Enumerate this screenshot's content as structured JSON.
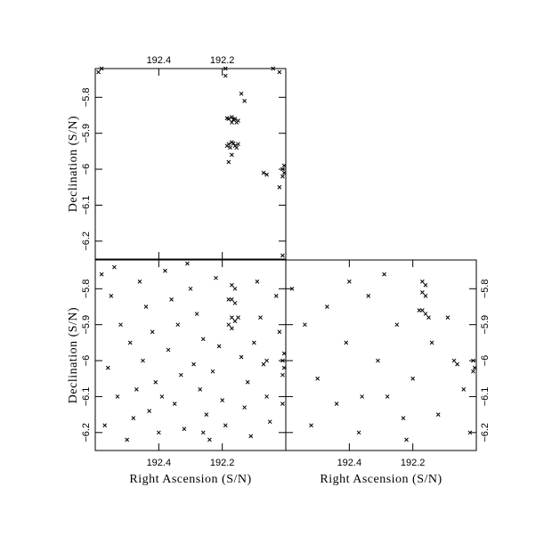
{
  "chart_data": [
    {
      "type": "scatter",
      "marker_color": "#000000",
      "xaxis_position": "top",
      "yaxis_position": "left",
      "ylabel": "Declination (S/N)",
      "xlim": [
        192.6,
        192.0
      ],
      "ylim": [
        -6.25,
        -5.72
      ],
      "xticks": [
        192.4,
        192.2
      ],
      "yticks": [
        {
          "value": -5.8,
          "label": "−5.8"
        },
        {
          "value": -5.9,
          "label": "−5.9"
        },
        {
          "value": -6,
          "label": "−6"
        },
        {
          "value": -6.1,
          "label": "−6.1"
        },
        {
          "value": -6.2,
          "label": "−6.2"
        }
      ],
      "x": [
        192.18,
        192.17,
        192.16,
        192.15,
        192.17,
        192.165,
        192.185,
        192.155,
        192.18,
        192.17,
        192.16,
        192.15,
        192.175,
        192.165,
        192.185,
        192.155,
        192.17,
        192.18,
        192.13,
        192.19,
        192.14,
        192.07,
        192.06,
        192.01,
        192.005,
        192.01,
        192.005,
        192.02,
        192.59,
        192.58,
        192.04,
        192.02,
        192.01,
        192.19
      ],
      "y": [
        -5.86,
        -5.855,
        -5.86,
        -5.865,
        -5.87,
        -5.862,
        -5.858,
        -5.87,
        -5.93,
        -5.925,
        -5.935,
        -5.93,
        -5.94,
        -5.928,
        -5.935,
        -5.94,
        -5.96,
        -5.98,
        -5.81,
        -5.74,
        -5.79,
        -6.01,
        -6.015,
        -6.0,
        -6.01,
        -6.02,
        -5.99,
        -6.05,
        -5.73,
        -5.72,
        -5.72,
        -5.73,
        -6.24,
        -5.72
      ]
    },
    {
      "type": "scatter",
      "marker_color": "#000000",
      "xaxis_position": "bottom",
      "yaxis_position": "left",
      "xlabel": "Right Ascension (S/N)",
      "ylabel": "Declination (S/N)",
      "xlim": [
        192.6,
        192.0
      ],
      "ylim": [
        -6.25,
        -5.72
      ],
      "xticks": [
        192.4,
        192.2
      ],
      "yticks": [
        {
          "value": -5.8,
          "label": "−5.8"
        },
        {
          "value": -5.9,
          "label": "−5.9"
        },
        {
          "value": -6,
          "label": "−6"
        },
        {
          "value": -6.1,
          "label": "−6.1"
        },
        {
          "value": -6.2,
          "label": "−6.2"
        }
      ],
      "x": [
        192.58,
        192.55,
        192.52,
        192.49,
        192.56,
        192.53,
        192.57,
        192.5,
        192.46,
        192.44,
        192.42,
        192.45,
        192.41,
        192.43,
        192.4,
        192.38,
        192.36,
        192.34,
        192.37,
        192.33,
        192.35,
        192.32,
        192.3,
        192.28,
        192.26,
        192.29,
        192.27,
        192.25,
        192.24,
        192.22,
        192.21,
        192.23,
        192.2,
        192.19,
        192.14,
        192.12,
        192.13,
        192.11,
        192.09,
        192.08,
        192.1,
        192.06,
        192.05,
        192.03,
        192.02,
        192.01,
        192.47,
        192.39,
        192.31,
        192.54,
        192.48,
        192.26,
        192.17,
        192.16,
        192.17,
        192.16,
        192.18,
        192.17,
        192.16,
        192.18,
        192.15,
        192.17,
        192.07,
        192.06,
        192.01,
        192.005,
        192.01,
        192.005
      ],
      "y": [
        -5.76,
        -5.82,
        -5.9,
        -5.95,
        -6.02,
        -6.1,
        -6.18,
        -6.22,
        -5.78,
        -5.85,
        -5.92,
        -6.0,
        -6.06,
        -6.14,
        -6.2,
        -5.75,
        -5.83,
        -5.9,
        -5.97,
        -6.04,
        -6.12,
        -6.19,
        -5.8,
        -5.87,
        -5.94,
        -6.01,
        -6.08,
        -6.15,
        -6.22,
        -5.77,
        -5.96,
        -6.03,
        -6.11,
        -6.18,
        -5.99,
        -6.06,
        -6.13,
        -6.21,
        -5.78,
        -5.88,
        -5.95,
        -6.1,
        -6.17,
        -5.82,
        -5.92,
        -6.12,
        -6.08,
        -6.1,
        -5.73,
        -5.74,
        -6.16,
        -6.2,
        -5.79,
        -5.8,
        -5.83,
        -5.84,
        -5.83,
        -5.88,
        -5.89,
        -5.9,
        -5.88,
        -5.91,
        -6.01,
        -6.0,
        -6.0,
        -6.02,
        -6.04,
        -5.98
      ]
    },
    {
      "type": "scatter",
      "marker_color": "#000000",
      "xaxis_position": "bottom",
      "yaxis_position": "right",
      "xlabel": "Right Ascension (S/N)",
      "xlim": [
        192.6,
        192.0
      ],
      "ylim": [
        -6.25,
        -5.72
      ],
      "xticks": [
        192.4,
        192.2
      ],
      "yticks": [
        {
          "value": -5.8,
          "label": "−5.8"
        },
        {
          "value": -5.9,
          "label": "−5.9"
        },
        {
          "value": -6,
          "label": "−6"
        },
        {
          "value": -6.1,
          "label": "−6.1"
        },
        {
          "value": -6.2,
          "label": "−6.2"
        }
      ],
      "x": [
        192.58,
        192.54,
        192.5,
        192.47,
        192.44,
        192.41,
        192.37,
        192.34,
        192.31,
        192.28,
        192.25,
        192.22,
        192.2,
        192.12,
        192.09,
        192.04,
        192.02,
        192.36,
        192.29,
        192.52,
        192.4,
        192.23,
        192.14,
        192.17,
        192.16,
        192.17,
        192.16,
        192.17,
        192.16,
        192.18,
        192.15,
        192.07,
        192.06,
        192.01,
        192.005,
        192.01
      ],
      "y": [
        -5.8,
        -5.9,
        -6.05,
        -5.85,
        -6.12,
        -5.95,
        -6.2,
        -5.82,
        -6.0,
        -6.1,
        -5.9,
        -6.22,
        -6.05,
        -6.15,
        -5.88,
        -6.08,
        -6.2,
        -6.1,
        -5.76,
        -6.18,
        -5.78,
        -6.16,
        -5.95,
        -5.78,
        -5.79,
        -5.81,
        -5.82,
        -5.86,
        -5.87,
        -5.86,
        -5.88,
        -6.0,
        -6.01,
        -6.0,
        -6.02,
        -6.03
      ]
    }
  ]
}
